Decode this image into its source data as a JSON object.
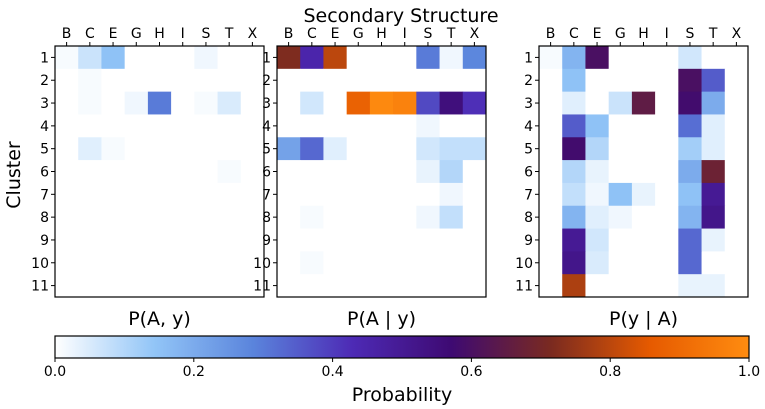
{
  "figure_title": "Secondary Structure",
  "y_label": "Cluster",
  "colorbar": {
    "label": "Probability",
    "range": [
      0.0,
      1.0
    ],
    "ticks": [
      "0.0",
      "0.2",
      "0.4",
      "0.6",
      "0.8",
      "1.0"
    ],
    "colormap": [
      "#ffffff",
      "#92c5f7",
      "#5a84dc",
      "#4d2ab5",
      "#3e0a72",
      "#7a2a20",
      "#e65a00",
      "#ff8c10"
    ]
  },
  "chart_data": [
    {
      "type": "heatmap",
      "title": "P(A, y)",
      "x_categories": [
        "B",
        "C",
        "E",
        "G",
        "H",
        "I",
        "S",
        "T",
        "X"
      ],
      "y_categories": [
        "1",
        "2",
        "3",
        "4",
        "5",
        "6",
        "7",
        "8",
        "9",
        "10",
        "11"
      ],
      "values": [
        [
          0.01,
          0.07,
          0.15,
          0.0,
          0.0,
          0.0,
          0.02,
          0.0,
          0.0
        ],
        [
          0.0,
          0.01,
          0.0,
          0.0,
          0.0,
          0.0,
          0.0,
          0.0,
          0.0
        ],
        [
          0.0,
          0.01,
          0.0,
          0.02,
          0.3,
          0.0,
          0.01,
          0.05,
          0.0
        ],
        [
          0.0,
          0.0,
          0.0,
          0.0,
          0.0,
          0.0,
          0.0,
          0.0,
          0.0
        ],
        [
          0.0,
          0.04,
          0.01,
          0.0,
          0.0,
          0.0,
          0.0,
          0.0,
          0.0
        ],
        [
          0.0,
          0.0,
          0.0,
          0.0,
          0.0,
          0.0,
          0.0,
          0.01,
          0.0
        ],
        [
          0.0,
          0.0,
          0.0,
          0.0,
          0.0,
          0.0,
          0.0,
          0.0,
          0.0
        ],
        [
          0.0,
          0.0,
          0.0,
          0.0,
          0.0,
          0.0,
          0.0,
          0.0,
          0.0
        ],
        [
          0.0,
          0.0,
          0.0,
          0.0,
          0.0,
          0.0,
          0.0,
          0.0,
          0.0
        ],
        [
          0.0,
          0.0,
          0.0,
          0.0,
          0.0,
          0.0,
          0.0,
          0.0,
          0.0
        ],
        [
          0.0,
          0.0,
          0.0,
          0.0,
          0.0,
          0.0,
          0.0,
          0.0,
          0.0
        ]
      ]
    },
    {
      "type": "heatmap",
      "title": "P(A | y)",
      "x_categories": [
        "B",
        "C",
        "E",
        "G",
        "H",
        "I",
        "S",
        "T",
        "X"
      ],
      "y_categories": [
        "1",
        "2",
        "3",
        "4",
        "5",
        "6",
        "7",
        "8",
        "9",
        "10",
        "11"
      ],
      "values": [
        [
          0.72,
          0.45,
          0.8,
          0.0,
          0.0,
          0.0,
          0.3,
          0.02,
          0.28
        ],
        [
          0.0,
          0.0,
          0.0,
          0.0,
          0.0,
          0.0,
          0.0,
          0.0,
          0.0
        ],
        [
          0.0,
          0.06,
          0.0,
          0.88,
          0.99,
          0.97,
          0.38,
          0.55,
          0.42
        ],
        [
          0.0,
          0.0,
          0.0,
          0.0,
          0.0,
          0.0,
          0.02,
          0.0,
          0.0
        ],
        [
          0.22,
          0.33,
          0.04,
          0.0,
          0.0,
          0.0,
          0.06,
          0.08,
          0.08
        ],
        [
          0.0,
          0.0,
          0.0,
          0.0,
          0.0,
          0.0,
          0.03,
          0.1,
          0.0
        ],
        [
          0.0,
          0.0,
          0.0,
          0.0,
          0.0,
          0.0,
          0.0,
          0.02,
          0.0
        ],
        [
          0.0,
          0.01,
          0.0,
          0.0,
          0.0,
          0.0,
          0.02,
          0.08,
          0.0
        ],
        [
          0.0,
          0.0,
          0.0,
          0.0,
          0.0,
          0.0,
          0.0,
          0.0,
          0.0
        ],
        [
          0.0,
          0.01,
          0.0,
          0.0,
          0.0,
          0.0,
          0.0,
          0.0,
          0.0
        ],
        [
          0.0,
          0.0,
          0.0,
          0.0,
          0.0,
          0.0,
          0.0,
          0.0,
          0.0
        ]
      ]
    },
    {
      "type": "heatmap",
      "title": "P(y | A)",
      "x_categories": [
        "B",
        "C",
        "E",
        "G",
        "H",
        "I",
        "S",
        "T",
        "X"
      ],
      "y_categories": [
        "1",
        "2",
        "3",
        "4",
        "5",
        "6",
        "7",
        "8",
        "9",
        "10",
        "11"
      ],
      "values": [
        [
          0.01,
          0.18,
          0.6,
          0.0,
          0.0,
          0.0,
          0.06,
          0.0,
          0.0
        ],
        [
          0.0,
          0.15,
          0.0,
          0.0,
          0.0,
          0.0,
          0.6,
          0.35,
          0.0
        ],
        [
          0.0,
          0.04,
          0.0,
          0.07,
          0.65,
          0.0,
          0.58,
          0.2,
          0.0
        ],
        [
          0.0,
          0.35,
          0.15,
          0.0,
          0.0,
          0.0,
          0.32,
          0.04,
          0.0
        ],
        [
          0.0,
          0.58,
          0.1,
          0.0,
          0.0,
          0.0,
          0.12,
          0.04,
          0.0
        ],
        [
          0.0,
          0.1,
          0.03,
          0.0,
          0.0,
          0.0,
          0.2,
          0.68,
          0.0
        ],
        [
          0.0,
          0.08,
          0.02,
          0.15,
          0.03,
          0.0,
          0.15,
          0.5,
          0.0
        ],
        [
          0.0,
          0.18,
          0.04,
          0.02,
          0.0,
          0.0,
          0.18,
          0.52,
          0.0
        ],
        [
          0.0,
          0.5,
          0.06,
          0.0,
          0.0,
          0.0,
          0.33,
          0.03,
          0.0
        ],
        [
          0.0,
          0.52,
          0.05,
          0.0,
          0.0,
          0.0,
          0.33,
          0.0,
          0.0
        ],
        [
          0.0,
          0.78,
          0.0,
          0.0,
          0.0,
          0.0,
          0.03,
          0.03,
          0.0
        ]
      ]
    }
  ]
}
